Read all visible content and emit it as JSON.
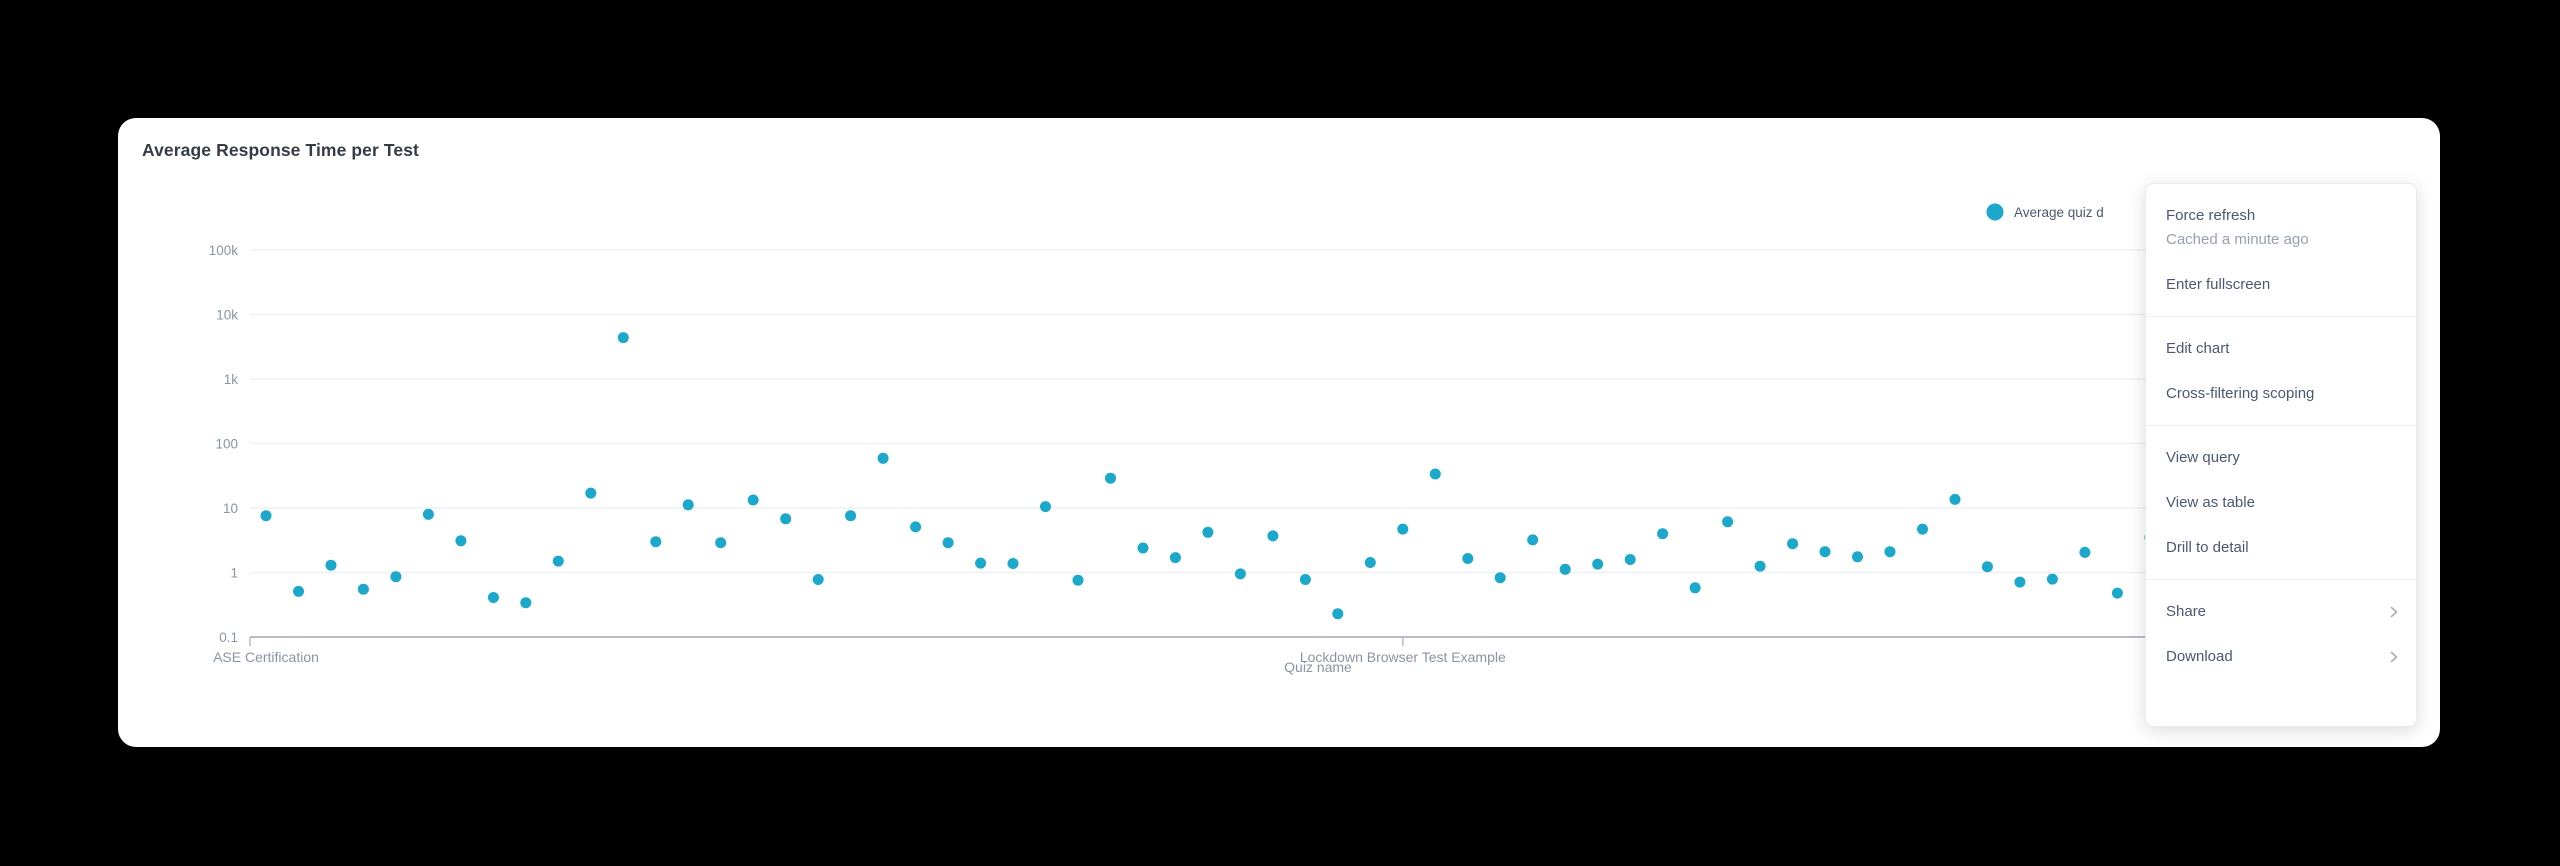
{
  "card": {
    "title": "Average Response Time per Test",
    "kebab_icon": "vertical-ellipsis",
    "legend": {
      "label": "Average quiz d",
      "dot_color": "#1CA8CA"
    }
  },
  "chart_data": {
    "type": "scatter",
    "title": "Average Response Time per Test",
    "xlabel": "Quiz name",
    "ylabel": "",
    "y_scale": "log",
    "grid": true,
    "legend_position": "top-right",
    "ylim": [
      0.1,
      100000
    ],
    "y_ticks": [
      {
        "label": "100k",
        "value": 100000
      },
      {
        "label": "10k",
        "value": 10000
      },
      {
        "label": "1k",
        "value": 1000
      },
      {
        "label": "100",
        "value": 100
      },
      {
        "label": "10",
        "value": 10
      },
      {
        "label": "1",
        "value": 1
      },
      {
        "label": "0.1",
        "value": 0.1
      }
    ],
    "x_tick_labels": [
      {
        "index": 0,
        "label": "ASE Certification"
      },
      {
        "index": 35,
        "label": "Lockdown Browser Test Example"
      }
    ],
    "series": [
      {
        "name": "Average quiz d",
        "color": "#1CA8CA",
        "values": [
          7.6,
          0.51,
          1.3,
          0.55,
          0.86,
          8.0,
          3.1,
          0.41,
          0.34,
          1.5,
          17.0,
          4380,
          3.0,
          11.2,
          2.9,
          13.3,
          6.8,
          0.78,
          7.6,
          59,
          5.1,
          2.9,
          1.4,
          1.38,
          10.5,
          0.76,
          29,
          2.4,
          1.7,
          4.2,
          0.95,
          3.7,
          0.78,
          0.23,
          1.43,
          4.7,
          33.7,
          1.65,
          0.83,
          3.2,
          1.12,
          1.35,
          1.59,
          4.0,
          0.58,
          6.1,
          1.25,
          2.8,
          2.1,
          1.75,
          2.1,
          4.7,
          13.6,
          1.23,
          0.71,
          0.79,
          2.05,
          0.48,
          3.5
        ]
      }
    ]
  },
  "menu": {
    "sections": [
      {
        "items": [
          {
            "label": "Force refresh",
            "sublabel": "Cached a minute ago"
          },
          {
            "label": "Enter fullscreen"
          }
        ]
      },
      {
        "items": [
          {
            "label": "Edit chart"
          },
          {
            "label": "Cross-filtering scoping"
          }
        ]
      },
      {
        "items": [
          {
            "label": "View query"
          },
          {
            "label": "View as table"
          },
          {
            "label": "Drill to detail"
          }
        ]
      },
      {
        "items": [
          {
            "label": "Share",
            "chevron": true
          },
          {
            "label": "Download",
            "chevron": true
          }
        ]
      }
    ]
  },
  "colors": {
    "page_bg": "#000000",
    "card_bg": "#ffffff",
    "dot": "#1CA8CA",
    "gridline": "#edf0f6",
    "axis_line": "#b8bcc6",
    "axis_label": "#8b94a4",
    "menu_text": "#4c5773",
    "menu_muted": "#98a0ae",
    "title_text": "#363c46"
  }
}
